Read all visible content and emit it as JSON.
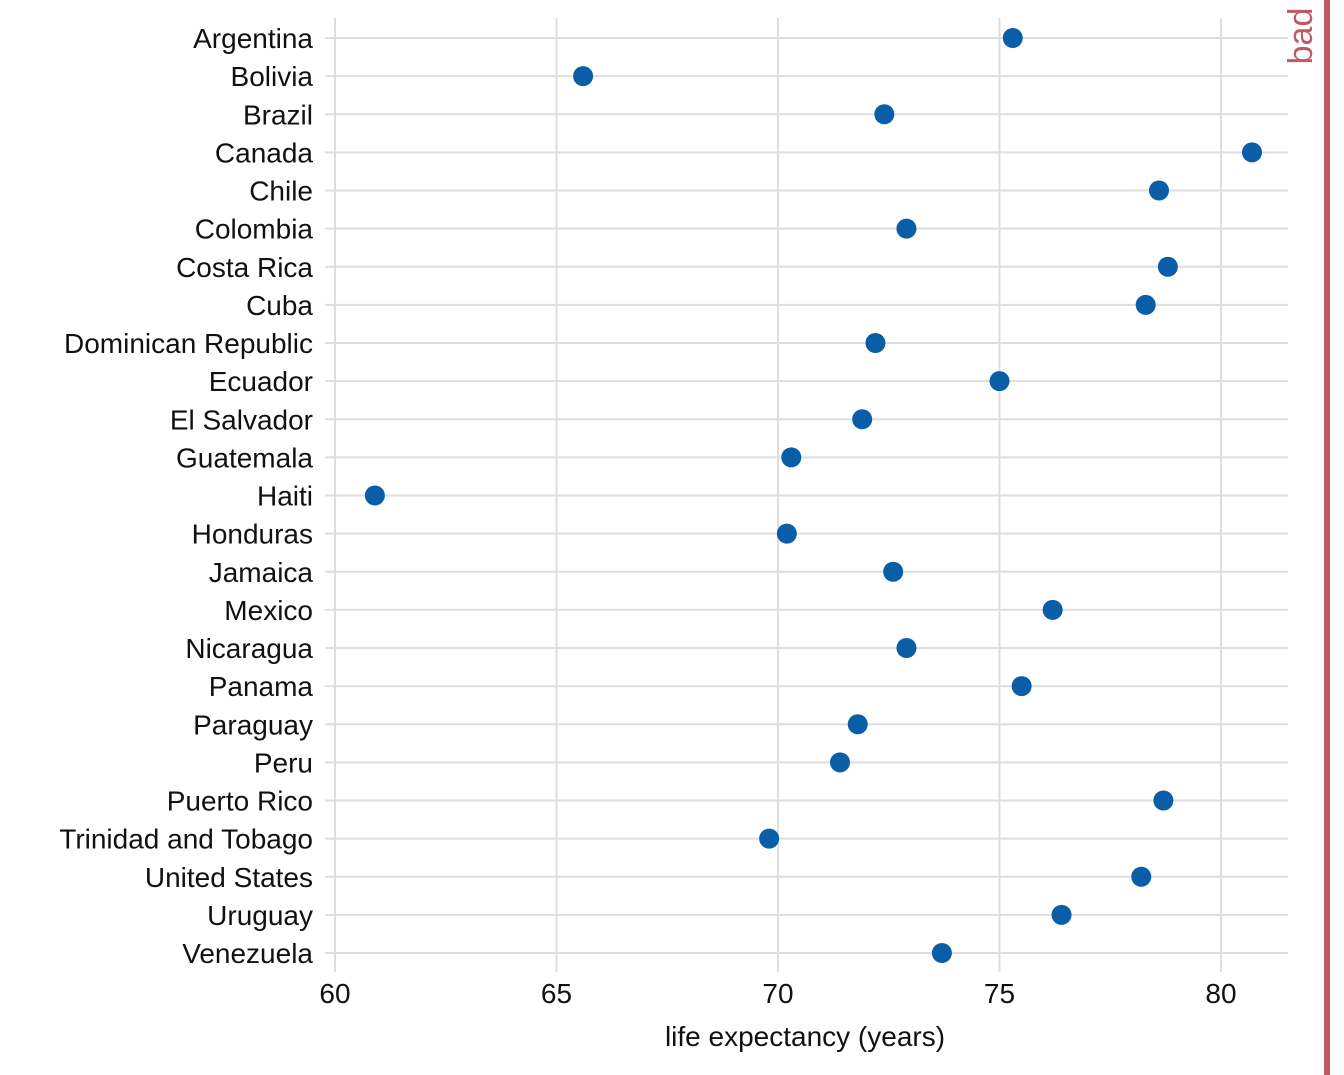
{
  "chart_data": {
    "type": "scatter",
    "xlabel": "life expectancy (years)",
    "ylabel": "",
    "xlim": [
      59.5,
      81.5
    ],
    "xticks": [
      60,
      65,
      70,
      75,
      80
    ],
    "xtick_labels": [
      "60",
      "65",
      "70",
      "75",
      "80"
    ],
    "grid": true,
    "categories": [
      "Argentina",
      "Bolivia",
      "Brazil",
      "Canada",
      "Chile",
      "Colombia",
      "Costa Rica",
      "Cuba",
      "Dominican Republic",
      "Ecuador",
      "El Salvador",
      "Guatemala",
      "Haiti",
      "Honduras",
      "Jamaica",
      "Mexico",
      "Nicaragua",
      "Panama",
      "Paraguay",
      "Peru",
      "Puerto Rico",
      "Trinidad and Tobago",
      "United States",
      "Uruguay",
      "Venezuela"
    ],
    "values": [
      75.3,
      65.6,
      72.4,
      80.7,
      78.6,
      72.9,
      78.8,
      78.3,
      72.2,
      75.0,
      71.9,
      70.3,
      60.9,
      70.2,
      72.6,
      76.2,
      72.9,
      75.5,
      71.8,
      71.4,
      78.7,
      69.8,
      78.2,
      76.4,
      73.7
    ],
    "marker_color": "#0a5ea8"
  },
  "annotation": {
    "text": "bad",
    "color": "#c05a66"
  }
}
